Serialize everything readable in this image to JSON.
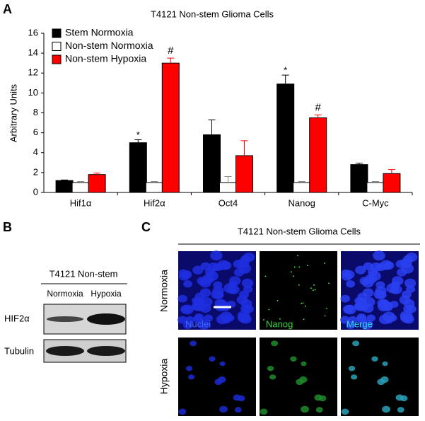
{
  "panel_labels": [
    "A",
    "B",
    "C"
  ],
  "chart_data": {
    "type": "bar",
    "title": "T4121 Non-stem Glioma Cells",
    "y_label": "Arbitrary Units",
    "categories": [
      "Hif1α",
      "Hif2α",
      "Oct4",
      "Nanog",
      "C-Myc"
    ],
    "series": [
      {
        "name": "Stem Normoxia",
        "color": "#000000",
        "values": [
          1.2,
          5.0,
          5.8,
          10.9,
          2.8
        ],
        "errors": [
          0.05,
          0.3,
          1.5,
          0.9,
          0.15
        ],
        "markers": [
          null,
          "*",
          null,
          "*",
          null
        ]
      },
      {
        "name": "Non-stem Normoxia",
        "color": "#ffffff",
        "values": [
          1.0,
          1.0,
          1.0,
          1.0,
          1.0
        ],
        "errors": [
          0.1,
          0.1,
          0.6,
          0.1,
          0.1
        ],
        "markers": [
          null,
          null,
          null,
          null,
          null
        ]
      },
      {
        "name": "Non-stem Hypoxia",
        "color": "#ff0000",
        "values": [
          1.8,
          13.0,
          3.7,
          7.5,
          1.9
        ],
        "errors": [
          0.15,
          0.5,
          1.5,
          0.3,
          0.4
        ],
        "markers": [
          null,
          "#",
          null,
          "#",
          null
        ]
      }
    ],
    "ylim": [
      0,
      16
    ],
    "yticks": [
      0,
      2,
      4,
      6,
      8,
      10,
      12,
      14,
      16
    ],
    "legend": "upper-left"
  },
  "blot": {
    "title": "T4121 Non-stem",
    "conditions": [
      "Normoxia",
      "Hypoxia"
    ],
    "proteins": [
      "HIF2α",
      "Tubulin"
    ]
  },
  "micrographs": {
    "title": "T4121 Non-stem Glioma Cells",
    "rows": [
      "Normoxia",
      "Hypoxia"
    ],
    "channels": [
      "Nuclei",
      "Nanog",
      "Merge"
    ]
  }
}
